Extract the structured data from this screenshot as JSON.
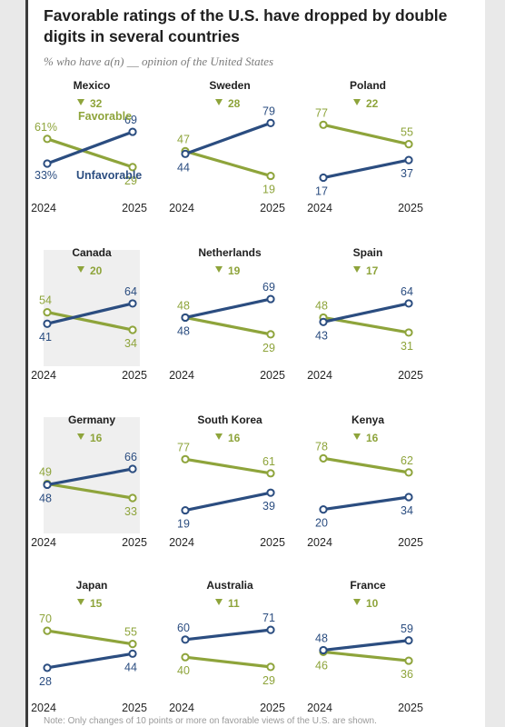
{
  "title": "Favorable ratings of the U.S. have dropped by double digits in several countries",
  "subtitle": "% who have a(n) __ opinion of the United States",
  "note": "Note: Only changes of 10 points or more on favorable views of the U.S. are shown.",
  "colors": {
    "favorable": "#8ea43b",
    "unfavorable": "#2b4d80",
    "shade": "#efefef"
  },
  "chart_data": {
    "type": "line",
    "x": [
      "2024",
      "2025"
    ],
    "ylim": [
      0,
      100
    ],
    "series_labels": {
      "favorable": "Favorable",
      "unfavorable": "Unfavorable"
    },
    "countries": [
      {
        "name": "Mexico",
        "change": "32",
        "favorable": [
          61,
          29
        ],
        "unfavorable": [
          33,
          69
        ],
        "fav_label_2024": "61%",
        "unfav_label_2024": "33%",
        "shaded": false
      },
      {
        "name": "Sweden",
        "change": "28",
        "favorable": [
          47,
          19
        ],
        "unfavorable": [
          44,
          79
        ],
        "shaded": false
      },
      {
        "name": "Poland",
        "change": "22",
        "favorable": [
          77,
          55
        ],
        "unfavorable": [
          17,
          37
        ],
        "shaded": false
      },
      {
        "name": "Canada",
        "change": "20",
        "favorable": [
          54,
          34
        ],
        "unfavorable": [
          41,
          64
        ],
        "shaded": true
      },
      {
        "name": "Netherlands",
        "change": "19",
        "favorable": [
          48,
          29
        ],
        "unfavorable": [
          48,
          69
        ],
        "shaded": false
      },
      {
        "name": "Spain",
        "change": "17",
        "favorable": [
          48,
          31
        ],
        "unfavorable": [
          43,
          64
        ],
        "shaded": false
      },
      {
        "name": "Germany",
        "change": "16",
        "favorable": [
          49,
          33
        ],
        "unfavorable": [
          48,
          66
        ],
        "shaded": true
      },
      {
        "name": "South Korea",
        "change": "16",
        "favorable": [
          77,
          61
        ],
        "unfavorable": [
          19,
          39
        ],
        "shaded": false
      },
      {
        "name": "Kenya",
        "change": "16",
        "favorable": [
          78,
          62
        ],
        "unfavorable": [
          20,
          34
        ],
        "shaded": false
      },
      {
        "name": "Japan",
        "change": "15",
        "favorable": [
          70,
          55
        ],
        "unfavorable": [
          28,
          44
        ],
        "shaded": false
      },
      {
        "name": "Australia",
        "change": "11",
        "favorable": [
          40,
          29
        ],
        "unfavorable": [
          60,
          71
        ],
        "shaded": false
      },
      {
        "name": "France",
        "change": "10",
        "favorable": [
          46,
          36
        ],
        "unfavorable": [
          48,
          59
        ],
        "shaded": false
      }
    ]
  }
}
